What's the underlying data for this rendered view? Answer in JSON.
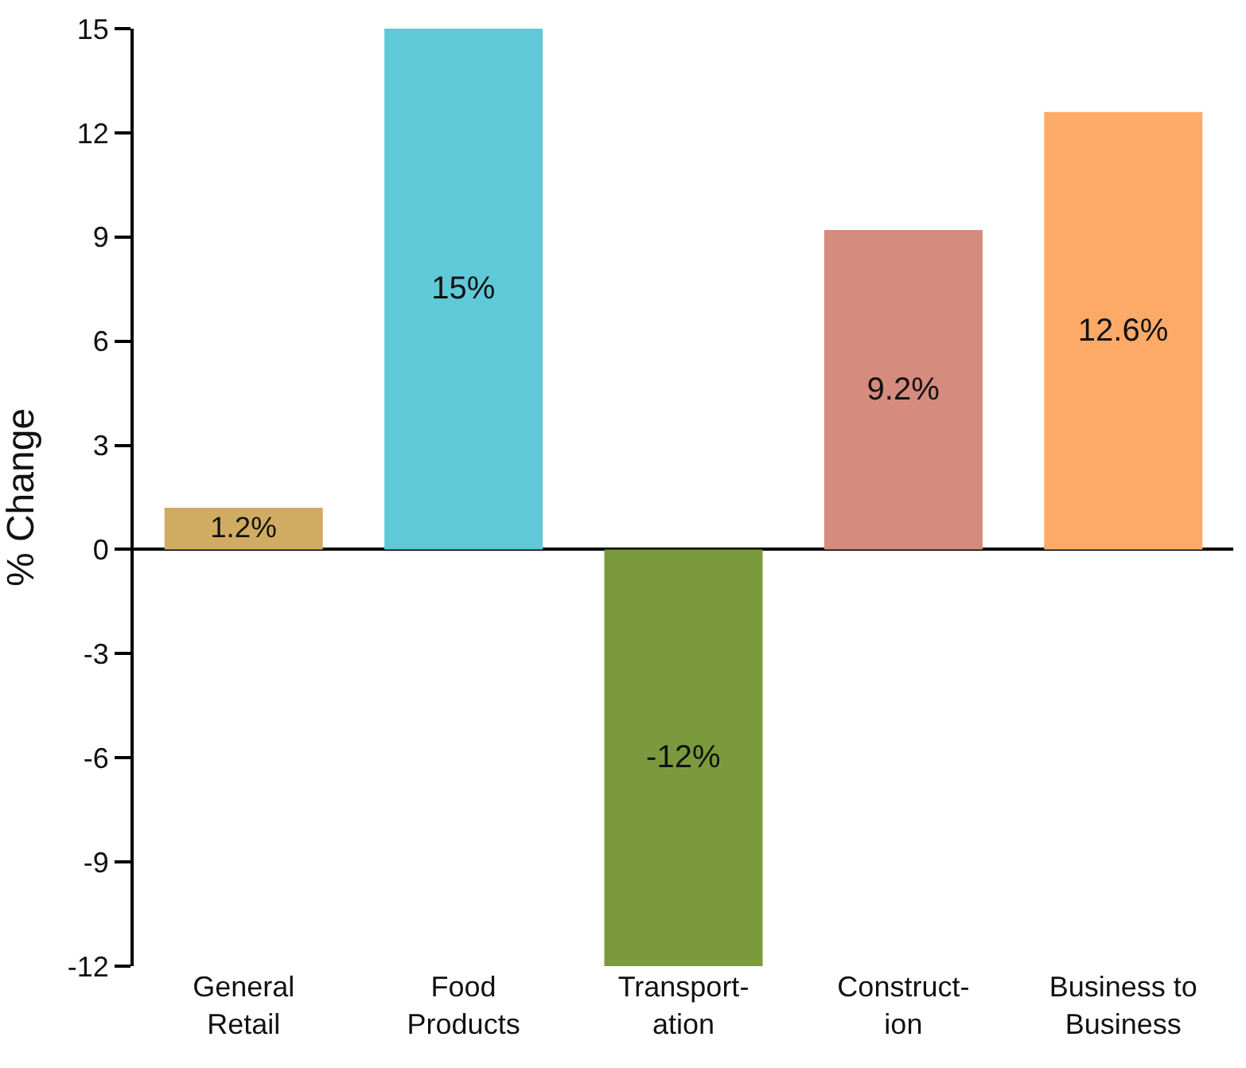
{
  "chart_data": {
    "type": "bar",
    "ylabel": "% Change",
    "categories": [
      "General\nRetail",
      "Food\nProducts",
      "Transport-\nation",
      "Construct-\nion",
      "Business to\nBusiness"
    ],
    "values": [
      1.2,
      15,
      -12,
      9.2,
      12.6
    ],
    "colors": [
      "#cfac62",
      "#5fc9d8",
      "#7b9a3d",
      "#d58b7d",
      "#fdaa69"
    ],
    "value_labels": [
      "1.2%",
      "15%",
      "-12%",
      "9.2%",
      "12.6%"
    ],
    "ylim": [
      -12,
      15
    ],
    "yticks": [
      -12,
      -9,
      -6,
      -3,
      0,
      3,
      6,
      9,
      12,
      15
    ]
  }
}
